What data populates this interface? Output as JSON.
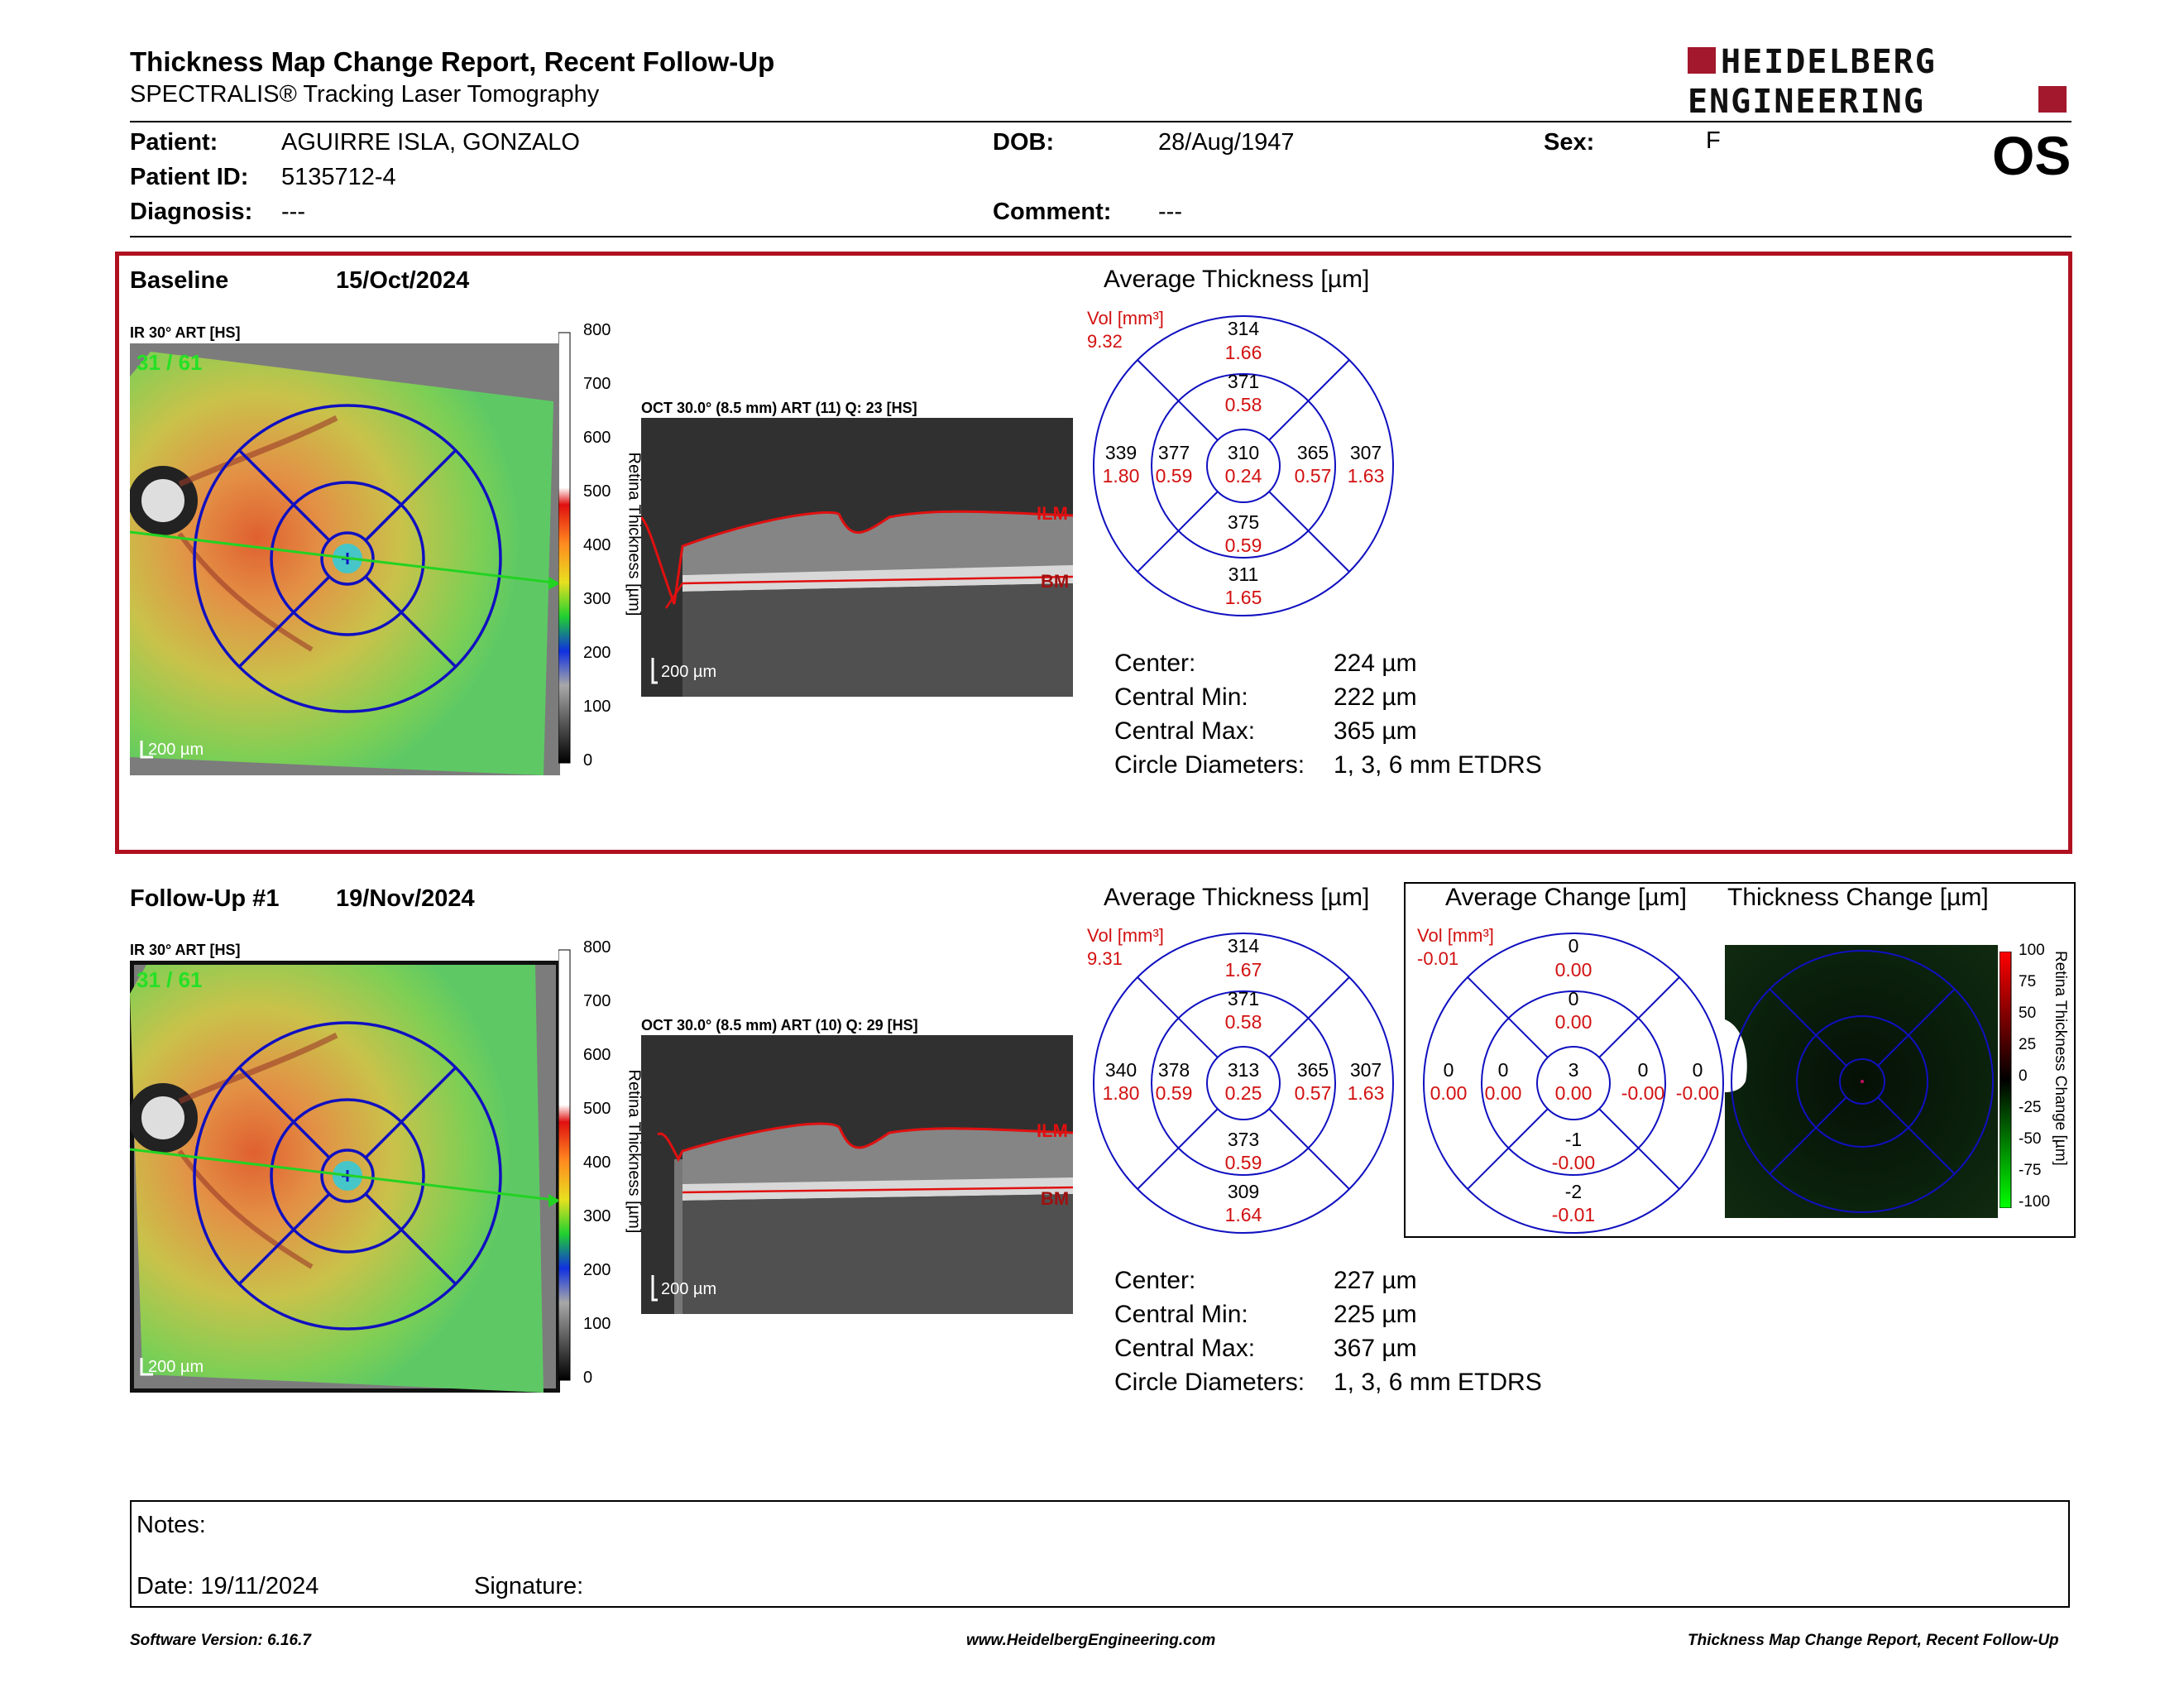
{
  "header": {
    "title": "Thickness Map Change Report, Recent Follow-Up",
    "subtitle": "SPECTRALIS® Tracking Laser Tomography",
    "logo_line1": "HEIDELBERG",
    "logo_line2": "ENGINEERING"
  },
  "patient": {
    "patient_label": "Patient:",
    "patient_value": "AGUIRRE ISLA, GONZALO",
    "id_label": "Patient ID:",
    "id_value": "5135712-4",
    "diagnosis_label": "Diagnosis:",
    "diagnosis_value": "---",
    "dob_label": "DOB:",
    "dob_value": "28/Aug/1947",
    "comment_label": "Comment:",
    "comment_value": "---",
    "sex_label": "Sex:",
    "sex_value": "F",
    "eye": "OS"
  },
  "baseline": {
    "label": "Baseline",
    "date": "15/Oct/2024",
    "ir_label": "IR 30° ART [HS]",
    "ir_overlay": "31 / 61",
    "oct_label": "OCT 30.0° (8.5 mm) ART (11) Q: 23 [HS]",
    "scale_label": "200 µm",
    "avg_title": "Average Thickness [µm]",
    "vol_label": "Vol [mm³]",
    "vol_value": "9.32",
    "etdrs": {
      "sup_outer": [
        "314",
        "1.66"
      ],
      "sup_inner": [
        "371",
        "0.58"
      ],
      "temp_outer": [
        "339",
        "1.80"
      ],
      "temp_inner": [
        "377",
        "0.59"
      ],
      "center": [
        "310",
        "0.24"
      ],
      "nas_inner": [
        "365",
        "0.57"
      ],
      "nas_outer": [
        "307",
        "1.63"
      ],
      "inf_inner": [
        "375",
        "0.59"
      ],
      "inf_outer": [
        "311",
        "1.65"
      ]
    },
    "stats": [
      {
        "label": "Center:",
        "value": "224 µm"
      },
      {
        "label": "Central Min:",
        "value": "222 µm"
      },
      {
        "label": "Central Max:",
        "value": "365 µm"
      },
      {
        "label": "Circle Diameters:",
        "value": "1, 3, 6 mm ETDRS"
      }
    ]
  },
  "followup": {
    "label": "Follow-Up #1",
    "date": "19/Nov/2024",
    "ir_label": "IR 30° ART [HS]",
    "ir_overlay": "31 / 61",
    "oct_label": "OCT 30.0° (8.5 mm) ART (10) Q: 29 [HS]",
    "scale_label": "200 µm",
    "avg_title": "Average Thickness [µm]",
    "vol_label": "Vol [mm³]",
    "vol_value": "9.31",
    "etdrs": {
      "sup_outer": [
        "314",
        "1.67"
      ],
      "sup_inner": [
        "371",
        "0.58"
      ],
      "temp_outer": [
        "340",
        "1.80"
      ],
      "temp_inner": [
        "378",
        "0.59"
      ],
      "center": [
        "313",
        "0.25"
      ],
      "nas_inner": [
        "365",
        "0.57"
      ],
      "nas_outer": [
        "307",
        "1.63"
      ],
      "inf_inner": [
        "373",
        "0.59"
      ],
      "inf_outer": [
        "309",
        "1.64"
      ]
    },
    "stats": [
      {
        "label": "Center:",
        "value": "227 µm"
      },
      {
        "label": "Central Min:",
        "value": "225 µm"
      },
      {
        "label": "Central Max:",
        "value": "367 µm"
      },
      {
        "label": "Circle Diameters:",
        "value": "1, 3, 6 mm ETDRS"
      }
    ]
  },
  "change": {
    "avg_title": "Average Change [µm]",
    "thick_title": "Thickness Change [µm]",
    "vol_label": "Vol [mm³]",
    "vol_value": "-0.01",
    "etdrs": {
      "sup_outer": [
        "0",
        "0.00"
      ],
      "sup_inner": [
        "0",
        "0.00"
      ],
      "temp_outer": [
        "0",
        "0.00"
      ],
      "temp_inner": [
        "0",
        "0.00"
      ],
      "center": [
        "3",
        "0.00"
      ],
      "nas_inner": [
        "0",
        "-0.00"
      ],
      "nas_outer": [
        "0",
        "-0.00"
      ],
      "inf_inner": [
        "-1",
        "-0.00"
      ],
      "inf_outer": [
        "-2",
        "-0.01"
      ]
    },
    "colorbar_ticks": [
      "100",
      "75",
      "50",
      "25",
      "0",
      "-25",
      "-50",
      "-75",
      "-100"
    ],
    "colorbar_title": "Retina Thickness Change [µm]"
  },
  "thickness_scale": {
    "ticks": [
      "800",
      "700",
      "600",
      "500",
      "400",
      "300",
      "200",
      "100",
      "0"
    ],
    "title": "Retina Thickness [µm]"
  },
  "oct_labels": {
    "ilm": "ILM",
    "bm": "BM"
  },
  "notes": {
    "notes_label": "Notes:",
    "date_label": "Date: 19/11/2024",
    "signature_label": "Signature:"
  },
  "footer": {
    "version": "Software Version: 6.16.7",
    "website": "www.HeidelbergEngineering.com",
    "report_name": "Thickness Map Change Report, Recent Follow-Up"
  }
}
